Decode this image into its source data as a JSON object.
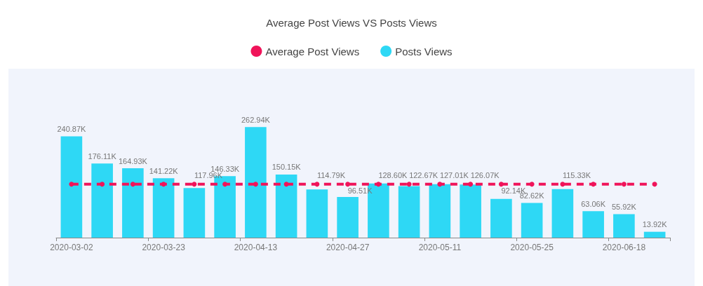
{
  "chart_data": {
    "type": "bar",
    "title": "Average Post Views VS Posts Views",
    "categories": [
      "2020-03-02",
      null,
      null,
      "2020-03-23",
      null,
      null,
      "2020-04-13",
      null,
      null,
      "2020-04-27",
      null,
      null,
      "2020-05-11",
      null,
      null,
      "2020-05-25",
      null,
      null,
      "2020-06-18",
      null
    ],
    "series": [
      {
        "name": "Average Post Views",
        "type": "line",
        "color": "#f0145a",
        "line_style": "dashed",
        "marker": "circle",
        "values": [
          126.96,
          126.96,
          126.96,
          126.96,
          126.96,
          126.96,
          126.96,
          126.96,
          126.96,
          126.96,
          126.96,
          126.96,
          126.96,
          126.96,
          126.96,
          126.96,
          126.96,
          126.96,
          126.96,
          126.96
        ]
      },
      {
        "name": "Posts Views",
        "type": "bar",
        "color": "#2ed8f5",
        "values": [
          240.87,
          176.11,
          164.93,
          141.22,
          117.96,
          146.33,
          262.94,
          150.15,
          114.79,
          96.51,
          128.6,
          122.67,
          127.01,
          126.07,
          92.14,
          82.62,
          115.33,
          63.06,
          55.92,
          13.92
        ],
        "value_labels": [
          "240.87K",
          "176.11K",
          "164.93K",
          "141.22K",
          "117.96K",
          "146.33K",
          "262.94K",
          "150.15K",
          "114.79K",
          "96.51K",
          "128.60K",
          "122.67K",
          "127.01K",
          "126.07K",
          "92.14K",
          "82.62K",
          "115.33K",
          "63.06K",
          "55.92K",
          "13.92K"
        ]
      }
    ],
    "legend": "top",
    "grid": false,
    "tick_labels": "x"
  }
}
